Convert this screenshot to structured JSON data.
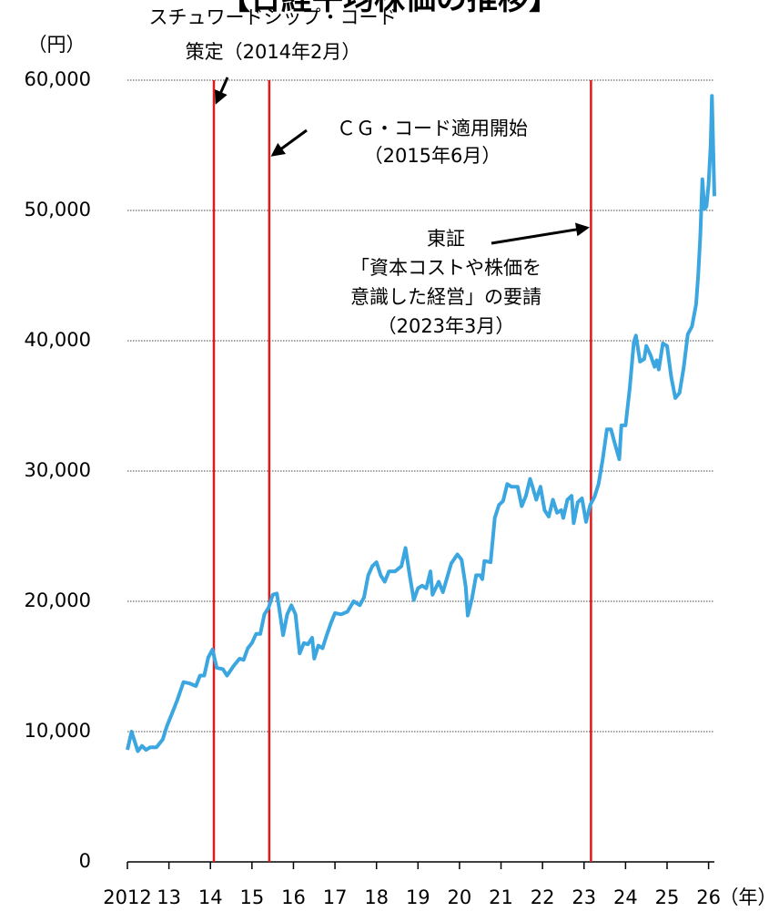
{
  "chart_data": {
    "type": "line",
    "title": "【日経平均株価の推移】",
    "y_unit": "（円）",
    "x_unit": "（年）",
    "xlim": [
      2012,
      2026.14
    ],
    "xticks": [
      {
        "value": 2012,
        "label": "2012"
      },
      {
        "value": 2013,
        "label": "13"
      },
      {
        "value": 2014,
        "label": "14"
      },
      {
        "value": 2015,
        "label": "15"
      },
      {
        "value": 2016,
        "label": "16"
      },
      {
        "value": 2017,
        "label": "17"
      },
      {
        "value": 2018,
        "label": "18"
      },
      {
        "value": 2019,
        "label": "19"
      },
      {
        "value": 2020,
        "label": "20"
      },
      {
        "value": 2021,
        "label": "21"
      },
      {
        "value": 2022,
        "label": "22"
      },
      {
        "value": 2023,
        "label": "23"
      },
      {
        "value": 2024,
        "label": "24"
      },
      {
        "value": 2025,
        "label": "25"
      },
      {
        "value": 2026,
        "label": "26"
      }
    ],
    "ylim": [
      0,
      60000
    ],
    "yticks": [
      0,
      {
        "value": 10000,
        "label": "10,000"
      },
      {
        "value": 20000,
        "label": "20,000"
      },
      {
        "value": 30000,
        "label": "30,000"
      },
      {
        "value": 40000,
        "label": "40,000"
      },
      {
        "value": 50000,
        "label": "50,000"
      },
      {
        "value": 60000,
        "label": "60,000"
      }
    ],
    "grid": true,
    "event_color": "#e0191b",
    "events": [
      {
        "x": 2014.083,
        "lines": [
          "スチュワードシップ・コード",
          "策定（2014年2月）"
        ]
      },
      {
        "x": 2015.417,
        "lines": [
          "ＣＧ・コード適用開始",
          "（2015年6月）"
        ]
      },
      {
        "x": 2023.167,
        "lines": [
          "東証",
          "「資本コストや株価を",
          "意識した経営」の要請",
          "（2023年3月）"
        ]
      }
    ],
    "series": [
      {
        "color": "#3ba6e0",
        "x": [
          2012.0,
          2012.1,
          2012.25,
          2012.35,
          2012.45,
          2012.55,
          2012.7,
          2012.85,
          2012.95,
          2013.1,
          2013.2,
          2013.35,
          2013.5,
          2013.65,
          2013.75,
          2013.85,
          2013.95,
          2014.05,
          2014.15,
          2014.3,
          2014.4,
          2014.55,
          2014.7,
          2014.8,
          2014.9,
          2015.0,
          2015.1,
          2015.2,
          2015.3,
          2015.4,
          2015.5,
          2015.6,
          2015.65,
          2015.75,
          2015.85,
          2015.95,
          2016.05,
          2016.15,
          2016.25,
          2016.35,
          2016.45,
          2016.5,
          2016.6,
          2016.7,
          2016.8,
          2016.9,
          2017.0,
          2017.15,
          2017.3,
          2017.45,
          2017.6,
          2017.7,
          2017.8,
          2017.9,
          2018.0,
          2018.1,
          2018.2,
          2018.3,
          2018.45,
          2018.6,
          2018.7,
          2018.8,
          2018.9,
          2019.0,
          2019.1,
          2019.2,
          2019.3,
          2019.35,
          2019.5,
          2019.6,
          2019.7,
          2019.8,
          2019.95,
          2020.05,
          2020.15,
          2020.2,
          2020.3,
          2020.4,
          2020.5,
          2020.55,
          2020.6,
          2020.75,
          2020.85,
          2020.95,
          2021.05,
          2021.15,
          2021.25,
          2021.4,
          2021.5,
          2021.6,
          2021.7,
          2021.75,
          2021.85,
          2021.95,
          2022.05,
          2022.15,
          2022.25,
          2022.35,
          2022.45,
          2022.5,
          2022.6,
          2022.7,
          2022.75,
          2022.85,
          2022.95,
          2023.05,
          2023.15,
          2023.25,
          2023.35,
          2023.45,
          2023.55,
          2023.65,
          2023.75,
          2023.85,
          2023.9,
          2024.0,
          2024.1,
          2024.2,
          2024.25,
          2024.35,
          2024.45,
          2024.5,
          2024.6,
          2024.7,
          2024.75,
          2024.8,
          2024.9,
          2025.0,
          2025.1,
          2025.2,
          2025.3,
          2025.4,
          2025.5,
          2025.6,
          2025.7,
          2025.75,
          2025.8,
          2025.85,
          2025.9,
          2025.95,
          2026.0,
          2026.05,
          2026.08,
          2026.14
        ],
        "values": [
          8600,
          10000,
          8500,
          8900,
          8600,
          8800,
          8800,
          9400,
          10400,
          11600,
          12400,
          13800,
          13700,
          13500,
          14300,
          14300,
          15700,
          16300,
          14900,
          14800,
          14300,
          15000,
          15600,
          15500,
          16400,
          16800,
          17500,
          17500,
          19000,
          19500,
          20500,
          20600,
          19600,
          17400,
          19000,
          19700,
          19000,
          16000,
          16800,
          16700,
          17200,
          15600,
          16600,
          16400,
          17400,
          18300,
          19100,
          19000,
          19200,
          20000,
          19700,
          20300,
          22000,
          22700,
          23000,
          22000,
          21500,
          22300,
          22300,
          22700,
          24100,
          22000,
          20100,
          21000,
          21200,
          21000,
          22300,
          20500,
          21500,
          20700,
          21800,
          22900,
          23600,
          23200,
          21100,
          18900,
          20200,
          22000,
          22000,
          21700,
          23100,
          23000,
          26400,
          27400,
          27700,
          29000,
          28800,
          28800,
          27300,
          28100,
          29400,
          28900,
          27800,
          28800,
          27000,
          26500,
          27800,
          26800,
          27000,
          26400,
          27800,
          28100,
          26000,
          27600,
          27900,
          26100,
          27400,
          28000,
          29000,
          30900,
          33200,
          33200,
          32000,
          30900,
          33500,
          33500,
          36300,
          39900,
          40400,
          38400,
          38600,
          39600,
          38900,
          38000,
          38500,
          37800,
          39800,
          39600,
          37200,
          35600,
          36000,
          37900,
          40500,
          41100,
          42800,
          45000,
          48000,
          52400,
          50100,
          50300,
          52000,
          55000,
          58800,
          51100
        ]
      }
    ]
  }
}
